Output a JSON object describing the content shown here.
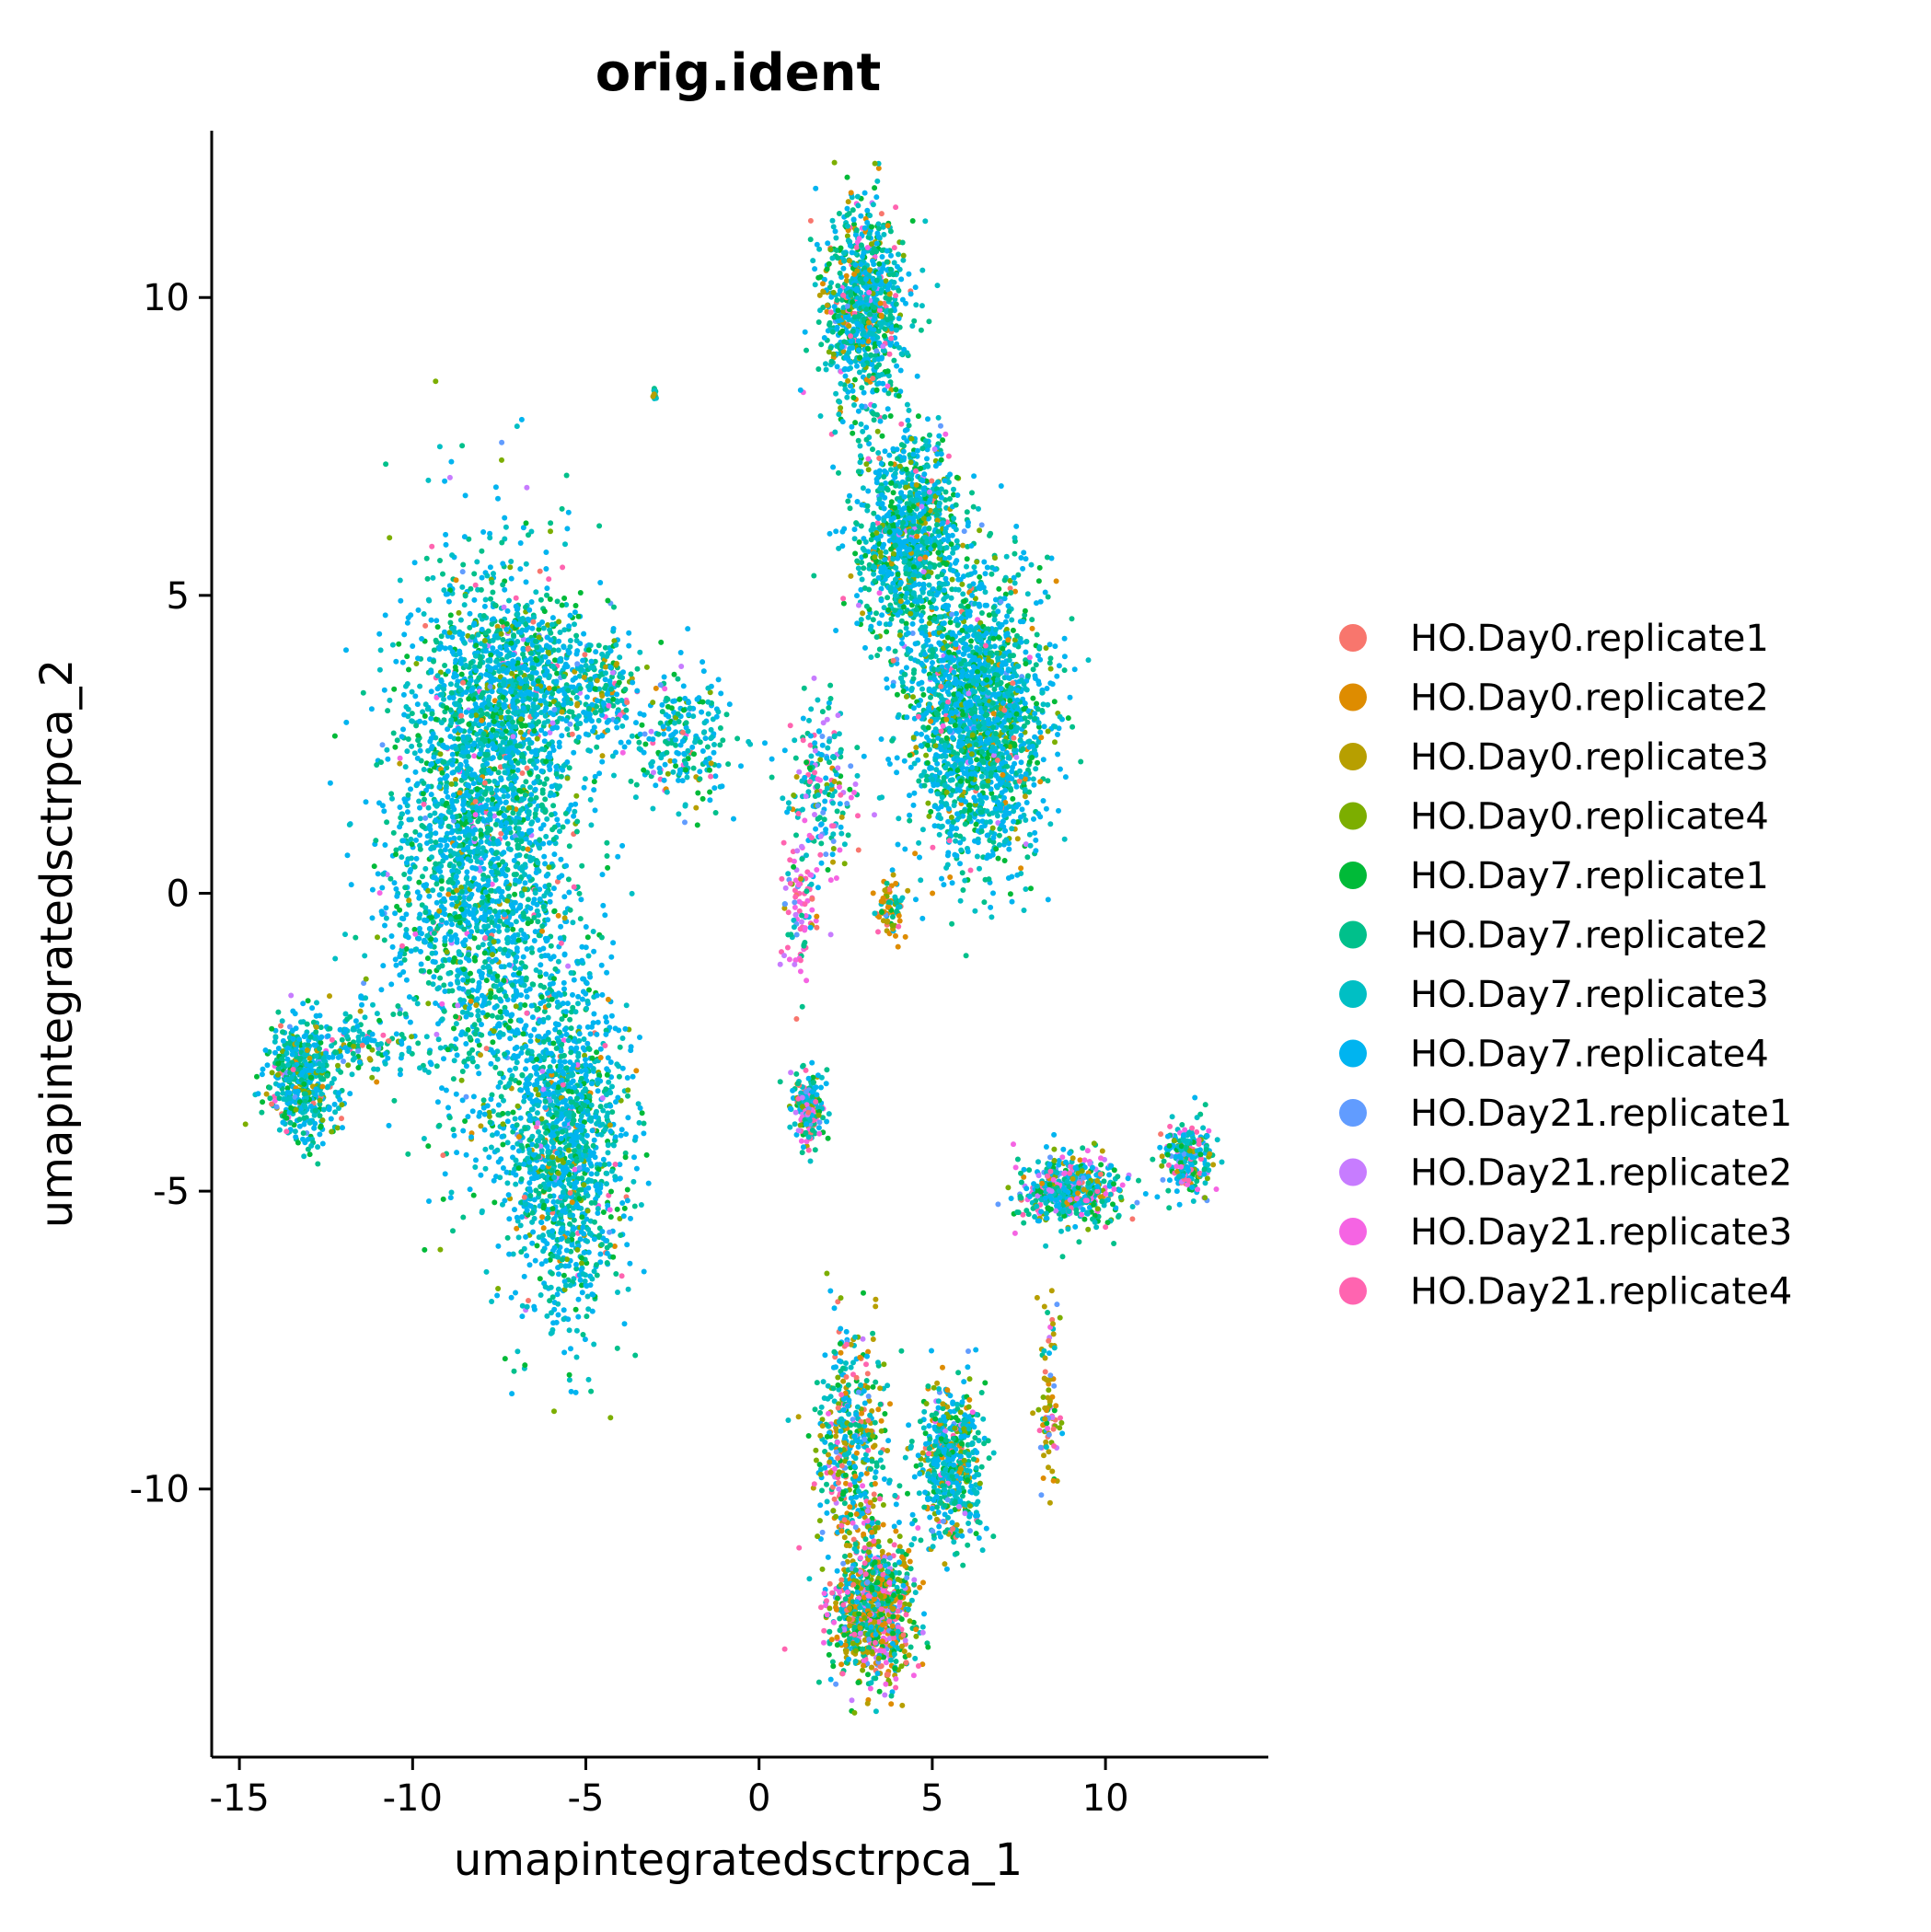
{
  "chart_data": {
    "type": "scatter",
    "title": "orig.ident",
    "xlabel": "umapintegratedsctrpca_1",
    "ylabel": "umapintegratedsctrpca_2",
    "xlim": [
      -15.8,
      14.7
    ],
    "ylim": [
      -14.5,
      12.8
    ],
    "xticks": [
      -15,
      -10,
      -5,
      0,
      5,
      10
    ],
    "yticks": [
      -10,
      -5,
      0,
      5,
      10
    ],
    "xtick_labels": [
      "-15",
      "-10",
      "-5",
      "0",
      "5",
      "10"
    ],
    "ytick_labels": [
      "-10",
      "-5",
      "0",
      "5",
      "10"
    ],
    "grid": false,
    "legend_position": "right",
    "series": [
      {
        "name": "HO.Day0.replicate1",
        "color": "#F8766D"
      },
      {
        "name": "HO.Day0.replicate2",
        "color": "#DE8C00"
      },
      {
        "name": "HO.Day0.replicate3",
        "color": "#B79F00"
      },
      {
        "name": "HO.Day0.replicate4",
        "color": "#7CAE00"
      },
      {
        "name": "HO.Day7.replicate1",
        "color": "#00BA38"
      },
      {
        "name": "HO.Day7.replicate2",
        "color": "#00C08B"
      },
      {
        "name": "HO.Day7.replicate3",
        "color": "#00BFC4"
      },
      {
        "name": "HO.Day7.replicate4",
        "color": "#00B4F0"
      },
      {
        "name": "HO.Day21.replicate1",
        "color": "#619CFF"
      },
      {
        "name": "HO.Day21.replicate2",
        "color": "#C77CFF"
      },
      {
        "name": "HO.Day21.replicate3",
        "color": "#F564E3"
      },
      {
        "name": "HO.Day21.replicate4",
        "color": "#FF64B0"
      }
    ],
    "clusters": [
      {
        "center": [
          -8.0,
          0.8
        ],
        "spread": [
          2.2,
          3.6
        ],
        "count": 2600,
        "mix": [
          0.01,
          0.01,
          0.01,
          0.03,
          0.08,
          0.2,
          0.22,
          0.4,
          0.01,
          0.01,
          0.01,
          0.01
        ]
      },
      {
        "center": [
          -5.6,
          -4.2
        ],
        "spread": [
          1.4,
          2.3
        ],
        "count": 1400,
        "mix": [
          0.01,
          0.01,
          0.01,
          0.03,
          0.08,
          0.2,
          0.22,
          0.4,
          0.01,
          0.01,
          0.01,
          0.01
        ]
      },
      {
        "center": [
          -7.0,
          3.5
        ],
        "spread": [
          1.6,
          1.2
        ],
        "count": 700,
        "mix": [
          0.01,
          0.01,
          0.01,
          0.05,
          0.1,
          0.2,
          0.22,
          0.38,
          0.01,
          0.01,
          0.005,
          0.005
        ]
      },
      {
        "center": [
          -4.5,
          3.4
        ],
        "spread": [
          0.8,
          0.8
        ],
        "count": 200,
        "mix": [
          0.02,
          0.03,
          0.05,
          0.05,
          0.08,
          0.2,
          0.2,
          0.35,
          0.01,
          0.01,
          0.01,
          0.01
        ]
      },
      {
        "center": [
          -2.2,
          2.6
        ],
        "spread": [
          1.2,
          0.9
        ],
        "count": 250,
        "mix": [
          0.01,
          0.01,
          0.01,
          0.04,
          0.08,
          0.2,
          0.22,
          0.35,
          0.02,
          0.02,
          0.03,
          0.03
        ]
      },
      {
        "center": [
          -13.2,
          -3.1
        ],
        "spread": [
          0.8,
          0.8
        ],
        "count": 500,
        "mix": [
          0.01,
          0.01,
          0.02,
          0.05,
          0.1,
          0.22,
          0.22,
          0.35,
          0.01,
          0.01,
          0.01,
          0.01
        ]
      },
      {
        "center": [
          -11.5,
          -2.5
        ],
        "spread": [
          1.2,
          0.4
        ],
        "count": 120,
        "mix": [
          0.01,
          0.01,
          0.02,
          0.05,
          0.1,
          0.22,
          0.22,
          0.35,
          0.01,
          0.01,
          0.01,
          0.01
        ]
      },
      {
        "center": [
          3.0,
          9.8
        ],
        "spread": [
          0.9,
          1.4
        ],
        "count": 900,
        "mix": [
          0.02,
          0.04,
          0.04,
          0.05,
          0.1,
          0.18,
          0.2,
          0.3,
          0.01,
          0.01,
          0.02,
          0.03
        ]
      },
      {
        "center": [
          4.3,
          6.0
        ],
        "spread": [
          1.2,
          1.4
        ],
        "count": 1000,
        "mix": [
          0.01,
          0.02,
          0.02,
          0.05,
          0.1,
          0.2,
          0.22,
          0.35,
          0.01,
          0.01,
          0.005,
          0.005
        ]
      },
      {
        "center": [
          6.3,
          3.0
        ],
        "spread": [
          1.6,
          1.9
        ],
        "count": 2000,
        "mix": [
          0.01,
          0.01,
          0.01,
          0.05,
          0.1,
          0.2,
          0.22,
          0.38,
          0.01,
          0.005,
          0.005,
          0.005
        ]
      },
      {
        "center": [
          1.8,
          1.8
        ],
        "spread": [
          0.8,
          1.2
        ],
        "count": 200,
        "mix": [
          0.01,
          0.01,
          0.01,
          0.03,
          0.05,
          0.2,
          0.2,
          0.2,
          0.05,
          0.06,
          0.08,
          0.1
        ]
      },
      {
        "center": [
          1.2,
          -0.2
        ],
        "spread": [
          0.5,
          0.9
        ],
        "count": 100,
        "mix": [
          0.01,
          0.01,
          0.01,
          0.02,
          0.03,
          0.08,
          0.08,
          0.06,
          0.1,
          0.15,
          0.2,
          0.25
        ]
      },
      {
        "center": [
          1.4,
          -3.6
        ],
        "spread": [
          0.4,
          0.5
        ],
        "count": 200,
        "mix": [
          0.03,
          0.03,
          0.03,
          0.05,
          0.08,
          0.18,
          0.18,
          0.18,
          0.04,
          0.06,
          0.07,
          0.07
        ]
      },
      {
        "center": [
          3.8,
          -0.3
        ],
        "spread": [
          0.3,
          0.4
        ],
        "count": 80,
        "mix": [
          0.05,
          0.2,
          0.2,
          0.1,
          0.1,
          0.1,
          0.1,
          0.1,
          0.01,
          0.01,
          0.01,
          0.02
        ]
      },
      {
        "center": [
          9.0,
          -5.0
        ],
        "spread": [
          1.2,
          0.5
        ],
        "count": 500,
        "mix": [
          0.03,
          0.03,
          0.03,
          0.05,
          0.08,
          0.16,
          0.18,
          0.2,
          0.05,
          0.05,
          0.07,
          0.07
        ]
      },
      {
        "center": [
          12.4,
          -4.4
        ],
        "spread": [
          0.6,
          0.5
        ],
        "count": 250,
        "mix": [
          0.03,
          0.03,
          0.03,
          0.05,
          0.08,
          0.16,
          0.18,
          0.2,
          0.05,
          0.05,
          0.07,
          0.07
        ]
      },
      {
        "center": [
          8.4,
          -8.5
        ],
        "spread": [
          0.3,
          1.2
        ],
        "count": 90,
        "mix": [
          0.05,
          0.1,
          0.25,
          0.15,
          0.05,
          0.05,
          0.05,
          0.05,
          0.05,
          0.05,
          0.07,
          0.08
        ]
      },
      {
        "center": [
          2.6,
          -9.2
        ],
        "spread": [
          0.8,
          1.4
        ],
        "count": 450,
        "mix": [
          0.04,
          0.1,
          0.1,
          0.08,
          0.08,
          0.14,
          0.16,
          0.18,
          0.02,
          0.03,
          0.03,
          0.04
        ]
      },
      {
        "center": [
          5.5,
          -9.6
        ],
        "spread": [
          0.8,
          1.1
        ],
        "count": 550,
        "mix": [
          0.02,
          0.04,
          0.05,
          0.06,
          0.1,
          0.18,
          0.2,
          0.3,
          0.01,
          0.01,
          0.01,
          0.02
        ]
      },
      {
        "center": [
          3.3,
          -12.0
        ],
        "spread": [
          1.0,
          1.0
        ],
        "count": 900,
        "mix": [
          0.05,
          0.1,
          0.13,
          0.1,
          0.09,
          0.12,
          0.1,
          0.1,
          0.03,
          0.04,
          0.06,
          0.08
        ]
      },
      {
        "center": [
          -3.0,
          8.4
        ],
        "spread": [
          0.05,
          0.1
        ],
        "count": 15,
        "mix": [
          0,
          0,
          0.3,
          0.2,
          0,
          0.2,
          0.1,
          0.2,
          0,
          0,
          0,
          0
        ]
      }
    ]
  }
}
